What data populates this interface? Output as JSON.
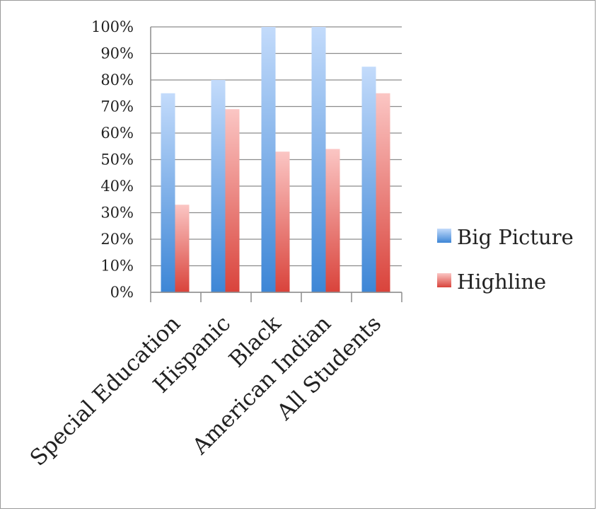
{
  "chart_data": {
    "type": "bar",
    "categories": [
      "Special Education",
      "Hispanic",
      "Black",
      "American Indian",
      "All Students"
    ],
    "series": [
      {
        "name": "Big Picture",
        "values": [
          75,
          80,
          100,
          100,
          85
        ]
      },
      {
        "name": "Highline",
        "values": [
          33,
          69,
          53,
          54,
          75
        ]
      }
    ],
    "y_ticks": [
      "0%",
      "10%",
      "20%",
      "30%",
      "40%",
      "50%",
      "60%",
      "70%",
      "80%",
      "90%",
      "100%"
    ],
    "ylim": [
      0,
      100
    ],
    "grid": true,
    "legend_position": "right",
    "colors": {
      "Big Picture": {
        "top": "#c3dbfb",
        "bottom": "#3d86d6"
      },
      "Highline": {
        "top": "#fbc6c4",
        "bottom": "#d9433b"
      }
    }
  }
}
